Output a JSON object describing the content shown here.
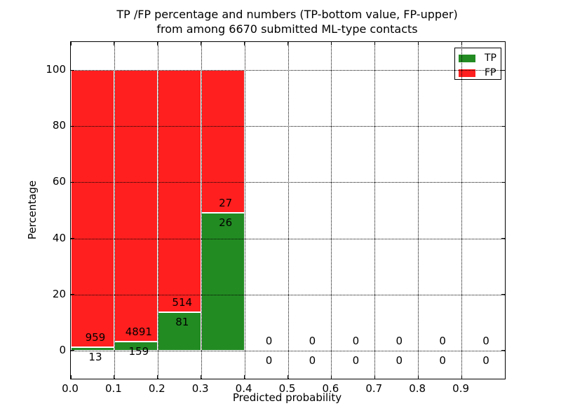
{
  "chart_data": {
    "type": "bar",
    "stacked": true,
    "title": "TP /FP percentage and numbers (TP-bottom value, FP-upper) from among 6670 submitted ML-type contacts",
    "title_lines": [
      "TP /FP percentage and numbers (TP-bottom value, FP-upper)",
      "from among 6670 submitted ML-type contacts"
    ],
    "xlabel": "Predicted probability",
    "ylabel": "Percentage",
    "total_contacts": 6670,
    "xlim": [
      0.0,
      1.0
    ],
    "ylim": [
      -10,
      110
    ],
    "xtick_values": [
      0.0,
      0.1,
      0.2,
      0.3,
      0.4,
      0.5,
      0.6,
      0.7,
      0.8,
      0.9
    ],
    "xtick_labels": [
      "0.0",
      "0.1",
      "0.2",
      "0.3",
      "0.4",
      "0.5",
      "0.6",
      "0.7",
      "0.8",
      "0.9"
    ],
    "ytick_values": [
      0,
      20,
      40,
      60,
      80,
      100
    ],
    "grid": "dotted",
    "bar_width": 0.1,
    "edge_color": "#ffffff",
    "legend_position": "upper right",
    "series": [
      {
        "name": "TP",
        "color": "#228b22"
      },
      {
        "name": "FP",
        "color": "#ff1f1f"
      }
    ],
    "bins": [
      {
        "range": [
          0.0,
          0.1
        ],
        "tp": 13,
        "fp": 959
      },
      {
        "range": [
          0.1,
          0.2
        ],
        "tp": 159,
        "fp": 4891
      },
      {
        "range": [
          0.2,
          0.3
        ],
        "tp": 81,
        "fp": 514
      },
      {
        "range": [
          0.3,
          0.4
        ],
        "tp": 26,
        "fp": 27
      },
      {
        "range": [
          0.4,
          0.5
        ],
        "tp": 0,
        "fp": 0
      },
      {
        "range": [
          0.5,
          0.6
        ],
        "tp": 0,
        "fp": 0
      },
      {
        "range": [
          0.6,
          0.7
        ],
        "tp": 0,
        "fp": 0
      },
      {
        "range": [
          0.7,
          0.8
        ],
        "tp": 0,
        "fp": 0
      },
      {
        "range": [
          0.8,
          0.9
        ],
        "tp": 0,
        "fp": 0
      },
      {
        "range": [
          0.9,
          1.0
        ],
        "tp": 0,
        "fp": 0
      }
    ]
  }
}
